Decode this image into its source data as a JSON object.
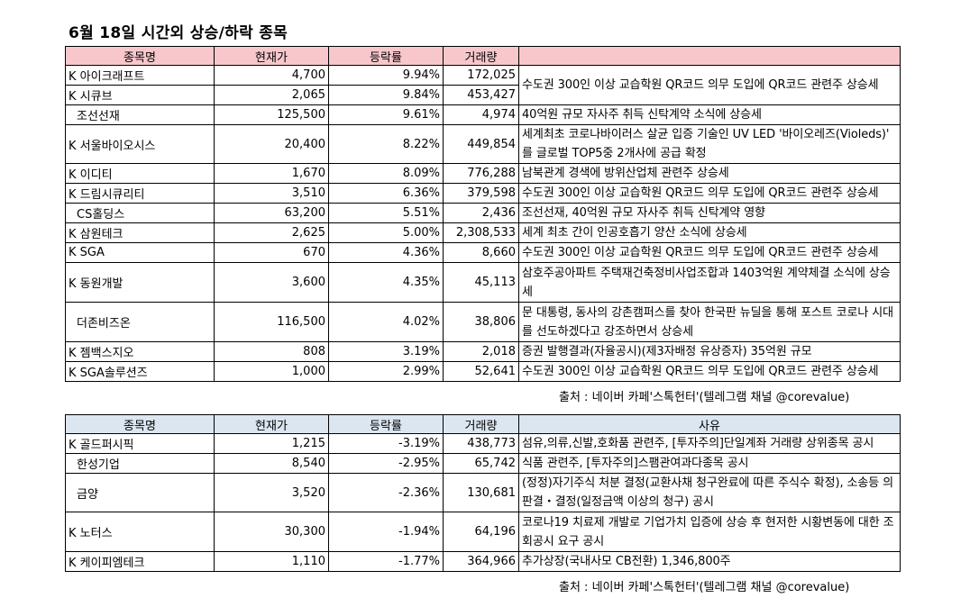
{
  "title": "6월 18일   시간외 상승/하락 종목",
  "headers": {
    "name": "종목명",
    "price": "현재가",
    "change": "등락률",
    "volume": "거래량",
    "reason": "사유"
  },
  "rising": [
    {
      "prefix": "K",
      "name": "아이크래프트",
      "price": "4,700",
      "change": "9.94%",
      "volume": "172,025",
      "reason": "수도권 300인 이상 교습학원 QR코드 의무 도입에 QR코드 관련주 상승세"
    },
    {
      "prefix": "K",
      "name": "시큐브",
      "price": "2,065",
      "change": "9.84%",
      "volume": "453,427",
      "reason": ""
    },
    {
      "prefix": "",
      "name": "조선선재",
      "price": "125,500",
      "change": "9.61%",
      "volume": "4,974",
      "reason": "40억원 규모 자사주 취득 신탁계약 소식에 상승세"
    },
    {
      "prefix": "K",
      "name": "서울바이오시스",
      "price": "20,400",
      "change": "8.22%",
      "volume": "449,854",
      "reason": "세계최초 코로나바이러스 살균 입증 기술인 UV LED '바이오레즈(Violeds)' 를 글로벌 TOP5중 2개사에 공급 확정"
    },
    {
      "prefix": "K",
      "name": "이디티",
      "price": "1,670",
      "change": "8.09%",
      "volume": "776,288",
      "reason": "남북관계 경색에 방위산업체 관련주 상승세"
    },
    {
      "prefix": "K",
      "name": "드림시큐리티",
      "price": "3,510",
      "change": "6.36%",
      "volume": "379,598",
      "reason": "수도권 300인 이상 교습학원 QR코드 의무 도입에 QR코드 관련주 상승세"
    },
    {
      "prefix": "",
      "name": "CS홀딩스",
      "price": "63,200",
      "change": "5.51%",
      "volume": "2,436",
      "reason": "조선선재, 40억원 규모 자사주 취득 신탁계약 영향"
    },
    {
      "prefix": "K",
      "name": "삼원테크",
      "price": "2,625",
      "change": "5.00%",
      "volume": "2,308,533",
      "reason": "세계 최초 간이 인공호흡기 양산 소식에 상승세"
    },
    {
      "prefix": "K",
      "name": "SGA",
      "price": "670",
      "change": "4.36%",
      "volume": "8,660",
      "reason": "수도권 300인 이상 교습학원 QR코드 의무 도입에 QR코드 관련주 상승세"
    },
    {
      "prefix": "K",
      "name": "동원개발",
      "price": "3,600",
      "change": "4.35%",
      "volume": "45,113",
      "reason": "삼호주공아파트 주택재건축정비사업조합과 1403억원 계약체결 소식에 상승세"
    },
    {
      "prefix": "",
      "name": "더존비즈온",
      "price": "116,500",
      "change": "4.02%",
      "volume": "38,806",
      "reason": "문 대통령, 동사의 강촌캠퍼스를 찾아 한국판 뉴딜을 통해 포스트 코로나 시대를 선도하겠다고 강조하면서 상승세"
    },
    {
      "prefix": "K",
      "name": "젬백스지오",
      "price": "808",
      "change": "3.19%",
      "volume": "2,018",
      "reason": "증권 발행결과(자율공시)(제3자배정 유상증자) 35억원 규모"
    },
    {
      "prefix": "K",
      "name": "SGA솔루션즈",
      "price": "1,000",
      "change": "2.99%",
      "volume": "52,641",
      "reason": "수도권 300인 이상 교습학원 QR코드 의무 도입에 QR코드 관련주 상승세"
    }
  ],
  "falling": [
    {
      "prefix": "K",
      "name": "골드퍼시픽",
      "price": "1,215",
      "change": "-3.19%",
      "volume": "438,773",
      "reason": "섬유,의류,신발,호화품 관련주, [투자주의]단일계좌 거래량 상위종목 공시"
    },
    {
      "prefix": "",
      "name": "한성기업",
      "price": "8,540",
      "change": "-2.95%",
      "volume": "65,742",
      "reason": "식품 관련주, [투자주의]스팸관여과다종목 공시"
    },
    {
      "prefix": "",
      "name": "금양",
      "price": "3,520",
      "change": "-2.36%",
      "volume": "130,681",
      "reason": "(정정)자기주식 처분 결정(교환사채 청구완료에 따른 주식수 확정), 소송등 의판결・결정(일정금액 이상의 청구) 공시"
    },
    {
      "prefix": "K",
      "name": "노터스",
      "price": "30,300",
      "change": "-1.94%",
      "volume": "64,196",
      "reason": "코로나19 치료제 개발로 기업가치 입증에 상승 후 현저한 시황변동에 대한 조회공시 요구 공시"
    },
    {
      "prefix": "K",
      "name": "케이피엠테크",
      "price": "1,110",
      "change": "-1.77%",
      "volume": "364,966",
      "reason": "추가상장(국내사모 CB전환) 1,346,800주"
    }
  ],
  "source": "출처 : 네이버 카페'스톡헌터'(텔레그램 채널 @corevalue)"
}
